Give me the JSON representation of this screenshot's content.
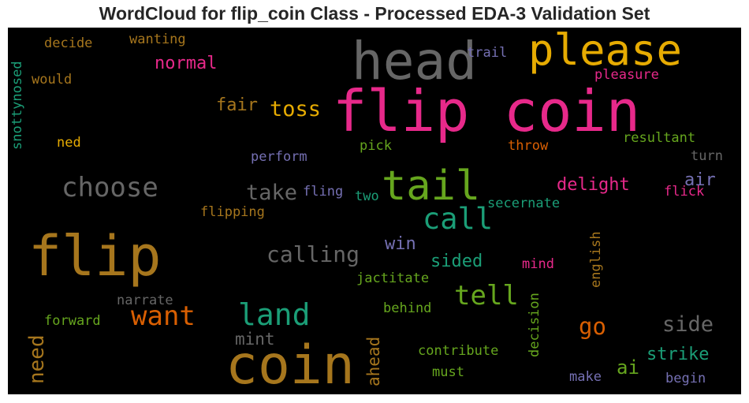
{
  "title": "WordCloud for flip_coin Class - Processed EDA-3 Validation Set",
  "colors": {
    "background": "#000000",
    "pink": "#e7298a",
    "gold": "#e6ab02",
    "brown": "#a6761d",
    "gray": "#666666",
    "green": "#1b9e77",
    "lime": "#66a61e",
    "orange": "#d95f02",
    "purple": "#7570b3"
  },
  "words": {
    "flip_coin": "flip coin",
    "head": "head",
    "please": "please",
    "flip": "flip",
    "coin": "coin",
    "tail": "tail",
    "call": "call",
    "choose": "choose",
    "land": "land",
    "want": "want",
    "tell": "tell",
    "calling": "calling",
    "take": "take",
    "toss": "toss",
    "normal": "normal",
    "fair": "fair",
    "side": "side",
    "delight": "delight",
    "go": "go",
    "ai": "ai",
    "air": "air",
    "strike": "strike",
    "sided": "sided",
    "win": "win",
    "mint": "mint",
    "need": "need",
    "ahead": "ahead",
    "decide": "decide",
    "wanting": "wanting",
    "trail": "trail",
    "pleasure": "pleasure",
    "would": "would",
    "snottynosed": "snottynosed",
    "ned": "ned",
    "perform": "perform",
    "pick": "pick",
    "throw": "throw",
    "resultant": "resultant",
    "turn": "turn",
    "flick": "flick",
    "fling": "fling",
    "two": "two",
    "secernate": "secernate",
    "flipping": "flipping",
    "mind": "mind",
    "english": "english",
    "jactitate": "jactitate",
    "narrate": "narrate",
    "forward": "forward",
    "behind": "behind",
    "decision": "decision",
    "contribute": "contribute",
    "must": "must",
    "make": "make",
    "begin": "begin"
  }
}
